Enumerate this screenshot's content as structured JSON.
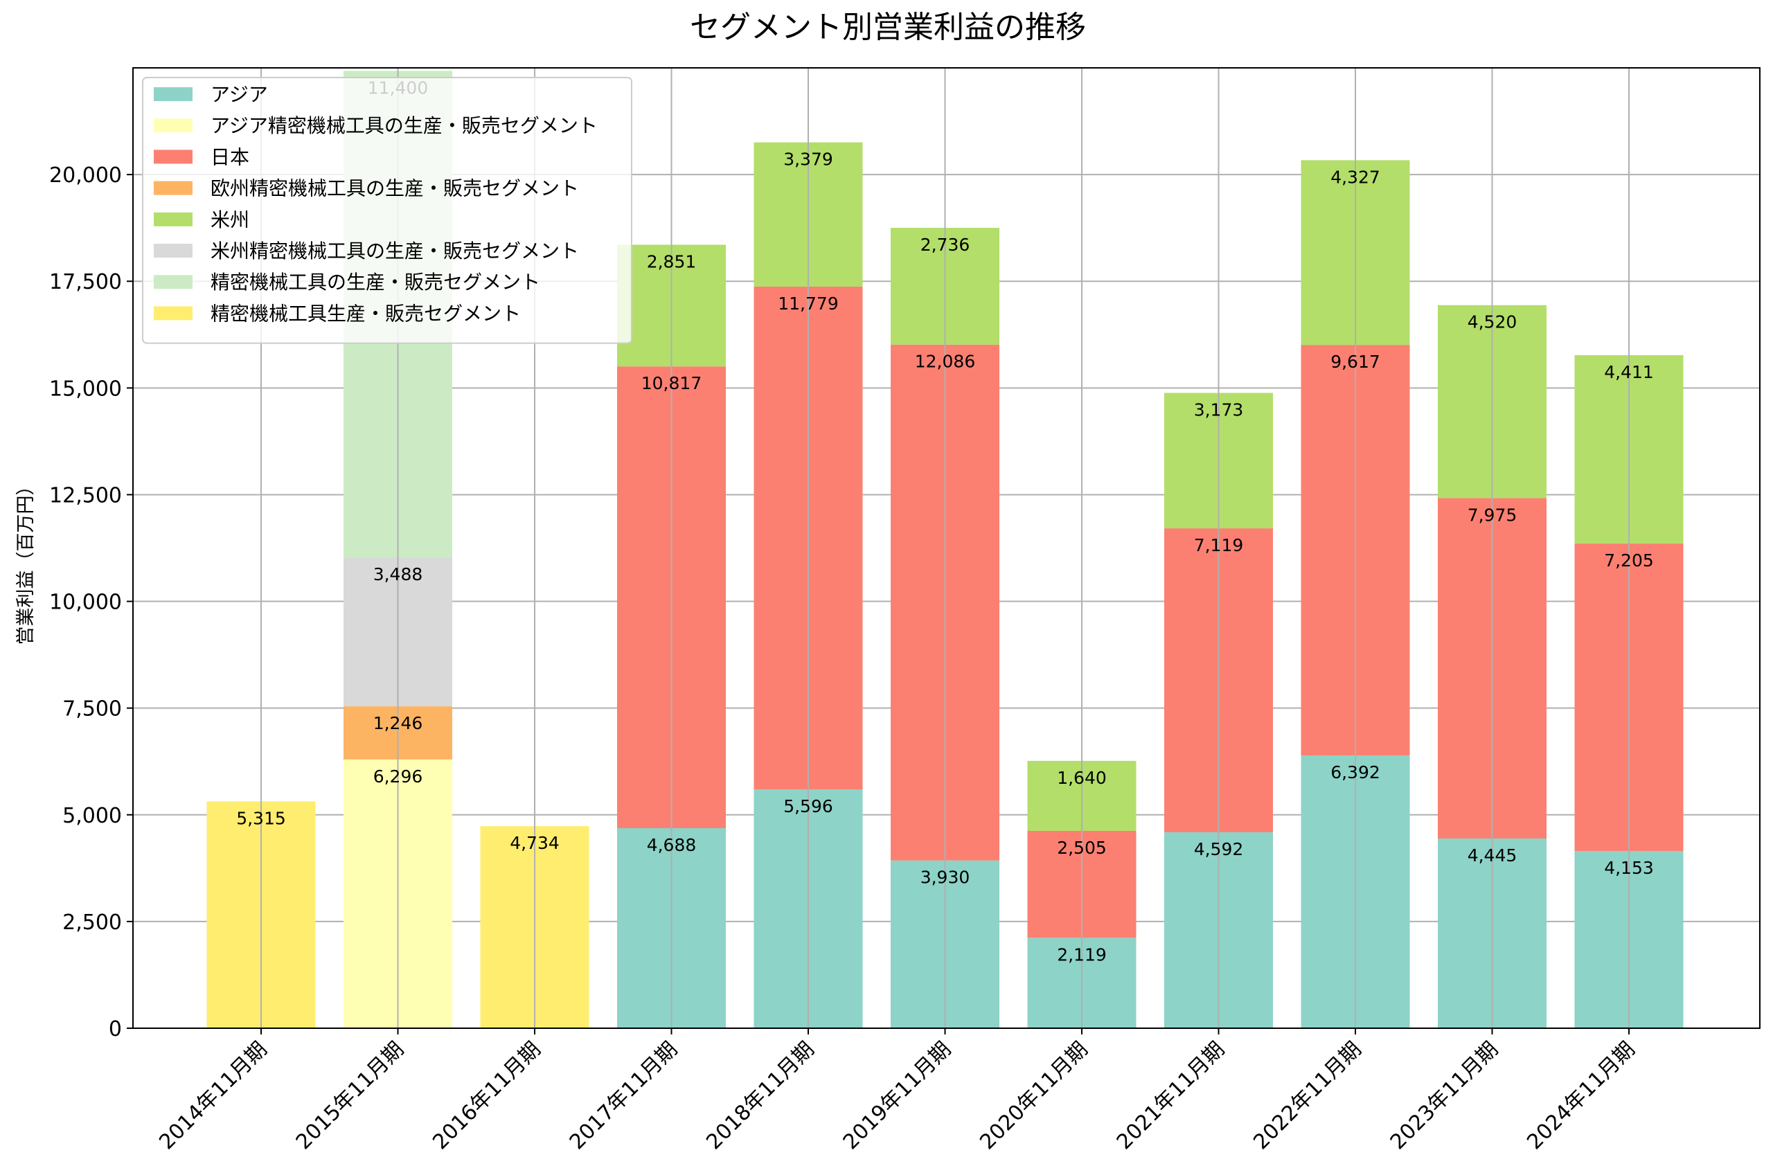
{
  "chart_data": {
    "type": "bar",
    "stacked": true,
    "title": "セグメント別営業利益の推移",
    "xlabel": "",
    "ylabel": "営業利益（百万円）",
    "ylim": [
      0,
      22500
    ],
    "yticks": [
      0,
      2500,
      5000,
      7500,
      10000,
      12500,
      15000,
      17500,
      20000
    ],
    "ytick_labels": [
      "0",
      "2,500",
      "5,000",
      "7,500",
      "10,000",
      "12,500",
      "15,000",
      "17,500",
      "20,000"
    ],
    "grid": true,
    "legend_position": "top-left",
    "categories": [
      "2014年11月期",
      "2015年11月期",
      "2016年11月期",
      "2017年11月期",
      "2018年11月期",
      "2019年11月期",
      "2020年11月期",
      "2021年11月期",
      "2022年11月期",
      "2023年11月期",
      "2024年11月期"
    ],
    "series": [
      {
        "name": "アジア",
        "color": "#8dd3c7",
        "values": [
          null,
          null,
          null,
          4688,
          5596,
          3930,
          2119,
          4592,
          6392,
          4445,
          4153
        ]
      },
      {
        "name": "アジア精密機械工具の生産・販売セグメント",
        "color": "#ffffb3",
        "values": [
          null,
          6296,
          null,
          null,
          null,
          null,
          null,
          null,
          null,
          null,
          null
        ]
      },
      {
        "name": "日本",
        "color": "#fb8072",
        "values": [
          null,
          null,
          null,
          10817,
          11779,
          12086,
          2505,
          7119,
          9617,
          7975,
          7205
        ]
      },
      {
        "name": "欧州精密機械工具の生産・販売セグメント",
        "color": "#fdb462",
        "values": [
          null,
          1246,
          null,
          null,
          null,
          null,
          null,
          null,
          null,
          null,
          null
        ]
      },
      {
        "name": "米州",
        "color": "#b3de69",
        "values": [
          null,
          null,
          null,
          2851,
          3379,
          2736,
          1640,
          3173,
          4327,
          4520,
          4411
        ]
      },
      {
        "name": "米州精密機械工具の生産・販売セグメント",
        "color": "#d9d9d9",
        "values": [
          null,
          3488,
          null,
          null,
          null,
          null,
          null,
          null,
          null,
          null,
          null
        ]
      },
      {
        "name": "精密機械工具の生産・販売セグメント",
        "color": "#ccebc5",
        "values": [
          null,
          11400,
          null,
          null,
          null,
          null,
          null,
          null,
          null,
          null,
          null
        ]
      },
      {
        "name": "精密機械工具生産・販売セグメント",
        "color": "#ffed6f",
        "values": [
          5315,
          null,
          4734,
          null,
          null,
          null,
          null,
          null,
          null,
          null,
          null
        ]
      }
    ]
  }
}
